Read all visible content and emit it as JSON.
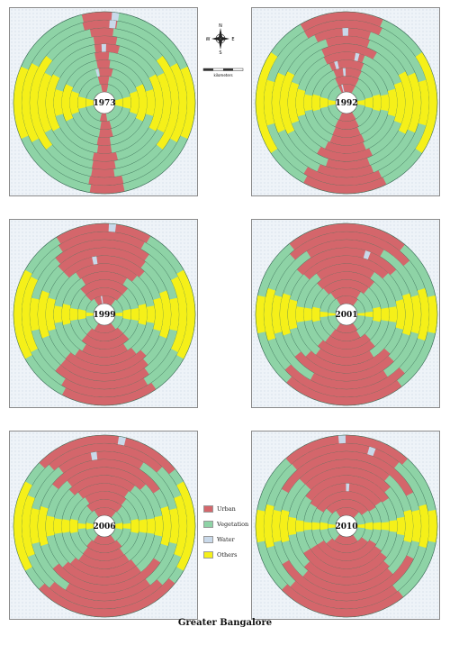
{
  "title": "Greater Bangalore",
  "colors": {
    "urban": "#d4666b",
    "vegetation": "#8ed3a6",
    "water": "#c9d9ea",
    "others": "#f5f019",
    "ring_line": "#3a6d57"
  },
  "legend": [
    {
      "key": "urban",
      "label": "Urban"
    },
    {
      "key": "vegetation",
      "label": "Vegetation"
    },
    {
      "key": "water",
      "label": "Water"
    },
    {
      "key": "others",
      "label": "Others"
    }
  ],
  "compass": {
    "n": "N",
    "s": "S",
    "e": "E",
    "w": "W"
  },
  "scale_unit": "kilometers",
  "panels": [
    {
      "year": "1973",
      "urban_ratio": 0.12,
      "others_ratio": 0.28
    },
    {
      "year": "1992",
      "urban_ratio": 0.3,
      "others_ratio": 0.22
    },
    {
      "year": "1999",
      "urban_ratio": 0.42,
      "others_ratio": 0.18
    },
    {
      "year": "2001",
      "urban_ratio": 0.45,
      "others_ratio": 0.16
    },
    {
      "year": "2006",
      "urban_ratio": 0.5,
      "others_ratio": 0.18
    },
    {
      "year": "2010",
      "urban_ratio": 0.58,
      "others_ratio": 0.12
    }
  ]
}
